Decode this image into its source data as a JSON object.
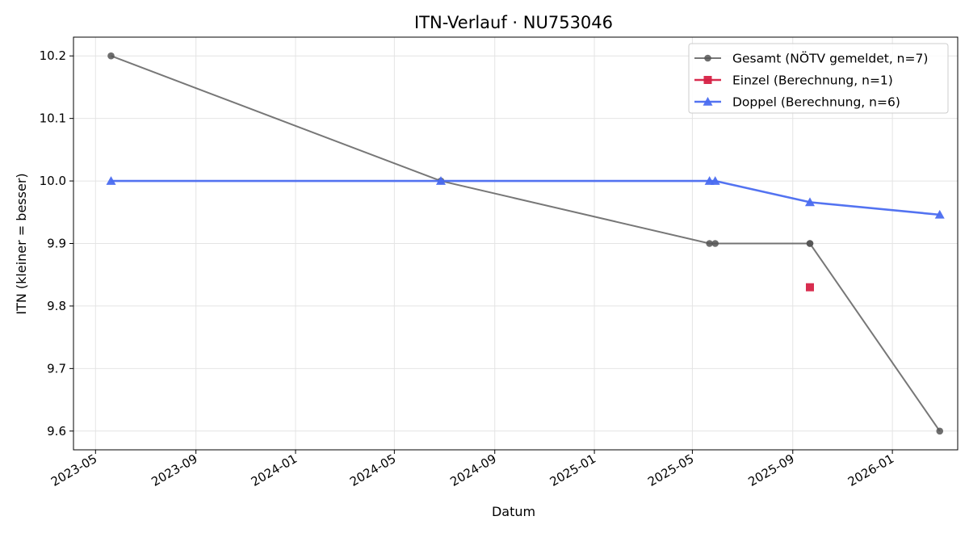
{
  "chart_data": {
    "type": "line",
    "title": "ITN-Verlauf · NU753046",
    "xlabel": "Datum",
    "ylabel": "ITN  (kleiner = besser)",
    "x_axis_type": "date",
    "xlim": [
      "2023-04-04",
      "2026-03-22"
    ],
    "ylim": [
      9.57,
      10.23
    ],
    "x_ticks": [
      {
        "date": "2023-05-01",
        "label": "2023-05"
      },
      {
        "date": "2023-09-01",
        "label": "2023-09"
      },
      {
        "date": "2024-01-01",
        "label": "2024-01"
      },
      {
        "date": "2024-05-01",
        "label": "2024-05"
      },
      {
        "date": "2024-09-01",
        "label": "2024-09"
      },
      {
        "date": "2025-01-01",
        "label": "2025-01"
      },
      {
        "date": "2025-05-01",
        "label": "2025-05"
      },
      {
        "date": "2025-09-01",
        "label": "2025-09"
      },
      {
        "date": "2026-01-01",
        "label": "2026-01"
      }
    ],
    "y_ticks": [
      {
        "value": 9.6,
        "label": "9.6"
      },
      {
        "value": 9.7,
        "label": "9.7"
      },
      {
        "value": 9.8,
        "label": "9.8"
      },
      {
        "value": 9.9,
        "label": "9.9"
      },
      {
        "value": 10.0,
        "label": "10.0"
      },
      {
        "value": 10.1,
        "label": "10.1"
      },
      {
        "value": 10.2,
        "label": "10.2"
      }
    ],
    "grid": true,
    "legend_position": "top-right",
    "series": [
      {
        "name": "Gesamt (NÖTV gemeldet, n=7)",
        "color": "#555555",
        "marker": "circle",
        "points": [
          {
            "x": "2023-05-20",
            "y": 10.2
          },
          {
            "x": "2024-06-27",
            "y": 10.0
          },
          {
            "x": "2025-05-22",
            "y": 9.9
          },
          {
            "x": "2025-05-29",
            "y": 9.9
          },
          {
            "x": "2025-09-22",
            "y": 9.9
          },
          {
            "x": "2025-09-22",
            "y": 9.9
          },
          {
            "x": "2026-02-28",
            "y": 9.6
          }
        ]
      },
      {
        "name": "Einzel (Berechnung, n=1)",
        "color": "#d62246",
        "marker": "square",
        "points": [
          {
            "x": "2025-09-22",
            "y": 9.83
          }
        ]
      },
      {
        "name": "Doppel (Berechnung, n=6)",
        "color": "#4a6cf0",
        "marker": "triangle",
        "points": [
          {
            "x": "2023-05-20",
            "y": 10.0
          },
          {
            "x": "2024-06-27",
            "y": 10.0
          },
          {
            "x": "2025-05-22",
            "y": 10.0
          },
          {
            "x": "2025-05-29",
            "y": 10.0
          },
          {
            "x": "2025-09-22",
            "y": 9.966
          },
          {
            "x": "2026-02-28",
            "y": 9.946
          }
        ]
      }
    ]
  }
}
